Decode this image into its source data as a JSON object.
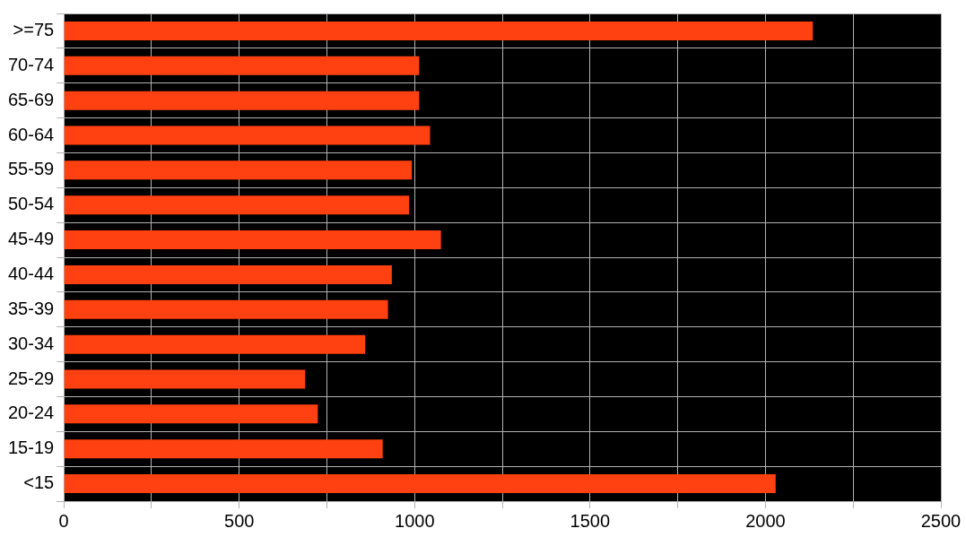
{
  "chart_data": {
    "type": "bar",
    "orientation": "horizontal",
    "categories": [
      ">=75",
      "70-74",
      "65-69",
      "60-64",
      "55-59",
      "50-54",
      "45-49",
      "40-44",
      "35-39",
      "30-34",
      "25-29",
      "20-24",
      "15-19",
      "<15"
    ],
    "values": [
      2135,
      1013,
      1013,
      1044,
      992,
      984,
      1075,
      935,
      924,
      859,
      688,
      724,
      909,
      2029
    ],
    "color": "#ff4010",
    "xlim": [
      0,
      2500
    ],
    "xticks": [
      0,
      {
        "value": 250,
        "label": null
      },
      500,
      {
        "value": 750,
        "label": null
      },
      1000,
      {
        "value": 1250,
        "label": null
      },
      1500,
      {
        "value": 1750,
        "label": null
      },
      2000,
      {
        "value": 2250,
        "label": null
      },
      2500
    ],
    "grid": true,
    "legend": false
  }
}
